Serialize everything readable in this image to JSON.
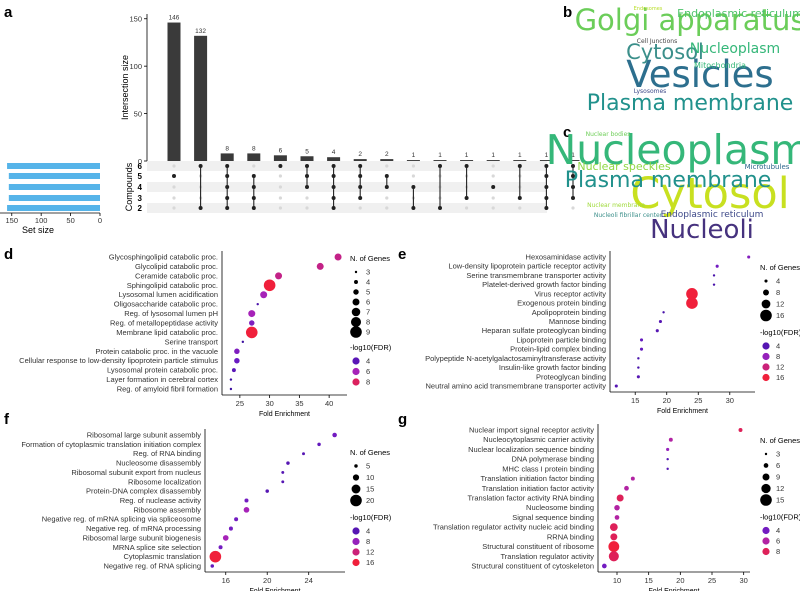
{
  "panel_labels": [
    "a",
    "b",
    "c",
    "d",
    "e",
    "f",
    "g"
  ],
  "chart_data": [
    {
      "panel": "a",
      "type": "bar",
      "title": "",
      "ylabel": "Intersection size",
      "ylim": [
        0,
        155
      ],
      "yticks": [
        0,
        50,
        100,
        150
      ],
      "values": [
        146,
        132,
        8,
        8,
        6,
        5,
        4,
        2,
        2,
        1,
        1,
        1,
        1,
        1,
        1,
        1
      ],
      "sets": [
        "6",
        "5",
        "4",
        "3",
        "2"
      ],
      "set_axis_title": "Compounds",
      "set_size_label": "Set size",
      "set_size_ticks": [
        150,
        100,
        50,
        0
      ],
      "set_sizes": [
        158,
        155,
        155,
        155,
        158
      ],
      "combinations": [
        [
          1
        ],
        [
          0,
          4
        ],
        [
          0,
          1,
          2,
          3,
          4
        ],
        [
          1,
          2,
          3,
          4
        ],
        [
          0
        ],
        [
          0,
          1,
          2
        ],
        [
          0,
          1,
          2,
          3,
          4
        ],
        [
          0,
          1,
          2,
          3
        ],
        [
          1,
          2
        ],
        [
          2,
          4
        ],
        [
          0,
          4
        ],
        [
          0,
          3
        ],
        [
          2
        ],
        [
          0,
          3
        ],
        [
          0,
          1,
          2,
          3,
          4
        ],
        [
          0,
          1,
          2,
          3
        ]
      ]
    },
    {
      "panel": "b",
      "type": "wordcloud",
      "words": [
        {
          "text": "Vesicles",
          "size": 37,
          "color": "#2d6f8e"
        },
        {
          "text": "Golgi apparatus",
          "size": 29,
          "color": "#6bcd59"
        },
        {
          "text": "Plasma membrane",
          "size": 22,
          "color": "#21918c"
        },
        {
          "text": "Cytosol",
          "size": 21,
          "color": "#3b8f8a"
        },
        {
          "text": "Nucleoplasm",
          "size": 14,
          "color": "#35b779"
        },
        {
          "text": "Endoplasmic reticulum",
          "size": 11,
          "color": "#4ec36b"
        },
        {
          "text": "Mitochondria",
          "size": 8,
          "color": "#35b779"
        },
        {
          "text": "Cell Junctions",
          "size": 6,
          "color": "#444444"
        },
        {
          "text": "Lysosomes",
          "size": 6,
          "color": "#3e4a89"
        },
        {
          "text": "Endosomes",
          "size": 5,
          "color": "#b8de29"
        }
      ]
    },
    {
      "panel": "c",
      "type": "wordcloud",
      "words": [
        {
          "text": "Nucleoplasm",
          "size": 41,
          "color": "#35b779"
        },
        {
          "text": "Cytosol",
          "size": 43,
          "color": "#c8e020"
        },
        {
          "text": "Plasma membrane",
          "size": 22,
          "color": "#21918c"
        },
        {
          "text": "Nucleoli",
          "size": 26,
          "color": "#46327e"
        },
        {
          "text": "Nuclear speckles",
          "size": 11,
          "color": "#8fd744"
        },
        {
          "text": "Endoplasmic reticulum",
          "size": 9,
          "color": "#3e4a89"
        },
        {
          "text": "Microtubules",
          "size": 7,
          "color": "#31688e"
        },
        {
          "text": "Nuclear bodies",
          "size": 6,
          "color": "#6ece58"
        },
        {
          "text": "Nuclear membrane",
          "size": 6,
          "color": "#9fda3a"
        },
        {
          "text": "Nucleoli fibrillar center",
          "size": 6,
          "color": "#3b8f8a"
        }
      ]
    },
    {
      "panel": "d",
      "type": "scatter",
      "xlabel": "Fold Enrichment",
      "xlim": [
        22,
        43
      ],
      "xticks": [
        25,
        30,
        35,
        40
      ],
      "size_legend_title": "N. of Genes",
      "size_legend": [
        3,
        4,
        5,
        6,
        7,
        8,
        9
      ],
      "color_legend_title": "-log10(FDR)",
      "color_legend": [
        4,
        6,
        8
      ],
      "color_range": [
        3,
        9
      ],
      "size_range": [
        3,
        9
      ],
      "points": [
        {
          "term": "Glycosphingolipid catabolic proc.",
          "x": 41.5,
          "genes": 6,
          "fdr": 7
        },
        {
          "term": "Glycolipid catabolic proc.",
          "x": 38.5,
          "genes": 6,
          "fdr": 7
        },
        {
          "term": "Ceramide catabolic proc.",
          "x": 31.5,
          "genes": 6,
          "fdr": 7
        },
        {
          "term": "Sphingolipid catabolic proc.",
          "x": 30,
          "genes": 9,
          "fdr": 9
        },
        {
          "term": "Lysosomal lumen acidification",
          "x": 29,
          "genes": 6,
          "fdr": 6
        },
        {
          "term": "Oligosaccharide catabolic proc.",
          "x": 28,
          "genes": 3,
          "fdr": 3.5
        },
        {
          "term": "Reg. of lysosomal lumen pH",
          "x": 27,
          "genes": 6,
          "fdr": 6
        },
        {
          "term": "Reg. of metallopeptidase activity",
          "x": 27,
          "genes": 5,
          "fdr": 5
        },
        {
          "term": "Membrane lipid catabolic proc.",
          "x": 27,
          "genes": 9,
          "fdr": 9
        },
        {
          "term": "Serine transport",
          "x": 25.5,
          "genes": 3,
          "fdr": 3
        },
        {
          "term": "Protein catabolic proc. in the vacuole",
          "x": 24.5,
          "genes": 5,
          "fdr": 5
        },
        {
          "term": "Cellular response to low-density lipoprotein particle stimulus",
          "x": 24.5,
          "genes": 5,
          "fdr": 4.5
        },
        {
          "term": "Lysosomal protein catabolic proc.",
          "x": 24,
          "genes": 4,
          "fdr": 4
        },
        {
          "term": "Layer formation in cerebral cortex",
          "x": 23.5,
          "genes": 3,
          "fdr": 3
        },
        {
          "term": "Reg. of amyloid fibril formation",
          "x": 23.5,
          "genes": 3,
          "fdr": 3
        }
      ]
    },
    {
      "panel": "e",
      "type": "scatter",
      "xlabel": "Fold Enrichment",
      "xlim": [
        11,
        34
      ],
      "xticks": [
        15,
        20,
        25,
        30
      ],
      "size_legend_title": "N. of Genes",
      "size_legend": [
        4,
        8,
        12,
        16
      ],
      "color_legend_title": "-log10(FDR)",
      "color_legend": [
        4,
        8,
        12,
        16
      ],
      "color_range": [
        2,
        16
      ],
      "size_range": [
        3,
        16
      ],
      "points": [
        {
          "term": "Hexosaminidase activity",
          "x": 33,
          "genes": 4,
          "fdr": 7
        },
        {
          "term": "Low-density lipoprotein particle receptor activity",
          "x": 28,
          "genes": 4,
          "fdr": 6
        },
        {
          "term": "Serine transmembrane transporter activity",
          "x": 27.5,
          "genes": 3,
          "fdr": 3
        },
        {
          "term": "Platelet-derived growth factor binding",
          "x": 27.5,
          "genes": 3,
          "fdr": 3
        },
        {
          "term": "Virus receptor activity",
          "x": 24,
          "genes": 16,
          "fdr": 16
        },
        {
          "term": "Exogenous protein binding",
          "x": 24,
          "genes": 16,
          "fdr": 16
        },
        {
          "term": "Apolipoprotein binding",
          "x": 19.5,
          "genes": 3,
          "fdr": 3
        },
        {
          "term": "Mannose binding",
          "x": 19,
          "genes": 4,
          "fdr": 4
        },
        {
          "term": "Heparan sulfate proteoglycan binding",
          "x": 18.5,
          "genes": 4,
          "fdr": 4
        },
        {
          "term": "Lipoprotein particle binding",
          "x": 16,
          "genes": 4,
          "fdr": 5
        },
        {
          "term": "Protein-lipid complex binding",
          "x": 16,
          "genes": 4,
          "fdr": 5
        },
        {
          "term": "Polypeptide N-acetylgalactosaminyltransferase activity",
          "x": 15.5,
          "genes": 3,
          "fdr": 3
        },
        {
          "term": "Insulin-like growth factor binding",
          "x": 15.5,
          "genes": 3,
          "fdr": 3
        },
        {
          "term": "Proteoglycan binding",
          "x": 15.5,
          "genes": 4,
          "fdr": 4
        },
        {
          "term": "Neutral amino acid transmembrane transporter activity",
          "x": 12,
          "genes": 4,
          "fdr": 4
        }
      ]
    },
    {
      "panel": "f",
      "type": "scatter",
      "xlabel": "Fold Enrichment",
      "xlim": [
        14,
        27.5
      ],
      "xticks": [
        16,
        20,
        24
      ],
      "size_legend_title": "N. of Genes",
      "size_legend": [
        5,
        10,
        15,
        20
      ],
      "color_legend_title": "-log10(FDR)",
      "color_legend": [
        4,
        8,
        12,
        16
      ],
      "color_range": [
        2,
        16
      ],
      "size_range": [
        3,
        20
      ],
      "points": [
        {
          "term": "Ribosomal large subunit assembly",
          "x": 26.5,
          "genes": 7,
          "fdr": 6
        },
        {
          "term": "Formation of cytoplasmic translation initiation complex",
          "x": 25,
          "genes": 5,
          "fdr": 5
        },
        {
          "term": "Reg. of RNA binding",
          "x": 23.5,
          "genes": 4,
          "fdr": 4
        },
        {
          "term": "Nucleosome disassembly",
          "x": 22,
          "genes": 5,
          "fdr": 4
        },
        {
          "term": "Ribosomal subunit export from nucleus",
          "x": 21.5,
          "genes": 4,
          "fdr": 4
        },
        {
          "term": "Ribosome localization",
          "x": 21.5,
          "genes": 4,
          "fdr": 4
        },
        {
          "term": "Protein-DNA complex disassembly",
          "x": 20,
          "genes": 5,
          "fdr": 4
        },
        {
          "term": "Reg. of nuclease activity",
          "x": 18,
          "genes": 6,
          "fdr": 6
        },
        {
          "term": "Ribosome assembly",
          "x": 18,
          "genes": 9,
          "fdr": 9
        },
        {
          "term": "Negative reg. of mRNA splicing via spliceosome",
          "x": 17,
          "genes": 6,
          "fdr": 6
        },
        {
          "term": "Negative reg. of mRNA processing",
          "x": 16.5,
          "genes": 6,
          "fdr": 6
        },
        {
          "term": "Ribosomal large subunit biogenesis",
          "x": 16,
          "genes": 9,
          "fdr": 9
        },
        {
          "term": "MRNA splice site selection",
          "x": 15.5,
          "genes": 6,
          "fdr": 6
        },
        {
          "term": "Cytoplasmic translation",
          "x": 15,
          "genes": 20,
          "fdr": 16
        },
        {
          "term": "Negative reg. of RNA splicing",
          "x": 14.7,
          "genes": 5,
          "fdr": 5
        }
      ]
    },
    {
      "panel": "g",
      "type": "scatter",
      "xlabel": "Fold Enrichment",
      "xlim": [
        7,
        31
      ],
      "xticks": [
        10,
        15,
        20,
        25,
        30
      ],
      "size_legend_title": "N. of Genes",
      "size_legend": [
        3,
        6,
        9,
        12,
        15
      ],
      "color_legend_title": "-log10(FDR)",
      "color_legend": [
        4,
        6,
        8
      ],
      "color_range": [
        2,
        9
      ],
      "size_range": [
        3,
        15
      ],
      "points": [
        {
          "term": "Nuclear import signal receptor activity",
          "x": 29.5,
          "genes": 5,
          "fdr": 8
        },
        {
          "term": "Nucleocytoplasmic carrier activity",
          "x": 18.5,
          "genes": 5,
          "fdr": 6
        },
        {
          "term": "Nuclear localization sequence binding",
          "x": 18,
          "genes": 4,
          "fdr": 5
        },
        {
          "term": "DNA polymerase binding",
          "x": 18,
          "genes": 3,
          "fdr": 3
        },
        {
          "term": "MHC class I protein binding",
          "x": 18,
          "genes": 3,
          "fdr": 3
        },
        {
          "term": "Translation initiation factor binding",
          "x": 12.5,
          "genes": 5,
          "fdr": 6
        },
        {
          "term": "Translation initiation factor activity",
          "x": 11.5,
          "genes": 6,
          "fdr": 6
        },
        {
          "term": "Translation factor activity RNA binding",
          "x": 10.5,
          "genes": 9,
          "fdr": 8
        },
        {
          "term": "Nucleosome binding",
          "x": 10,
          "genes": 7,
          "fdr": 6
        },
        {
          "term": "Signal sequence binding",
          "x": 10,
          "genes": 6,
          "fdr": 6
        },
        {
          "term": "Translation regulator activity nucleic acid binding",
          "x": 9.5,
          "genes": 10,
          "fdr": 8
        },
        {
          "term": "RRNA binding",
          "x": 9.5,
          "genes": 9,
          "fdr": 8
        },
        {
          "term": "Structural constituent of ribosome",
          "x": 9.5,
          "genes": 14,
          "fdr": 9
        },
        {
          "term": "Translation regulator activity",
          "x": 9.5,
          "genes": 13,
          "fdr": 8
        },
        {
          "term": "Structural constituent of cytoskeleton",
          "x": 8,
          "genes": 6,
          "fdr": 4
        }
      ]
    }
  ]
}
